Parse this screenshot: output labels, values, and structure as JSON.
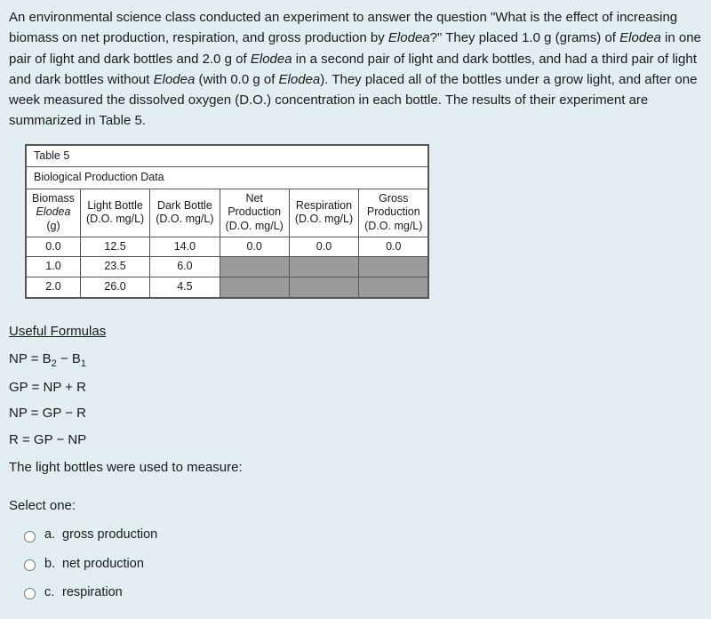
{
  "intro": {
    "html": "An environmental science class conducted an experiment to answer the question \"What is the effect of increasing biomass on net production, respiration, and gross production by <em>Elodea</em>?\" They placed 1.0 g (grams) of <em>Elodea</em> in one pair of light and dark bottles and 2.0 g of <em>Elodea</em> in a second pair of light and dark bottles, and had a third pair of light and dark bottles without <em>Elodea</em> (with 0.0 g of <em>Elodea</em>). They placed all of the bottles under a grow light, and after one week measured the dissolved oxygen (D.O.) concentration in each bottle. The results of their experiment are summarized in Table 5."
  },
  "table": {
    "title": "Table 5",
    "subtitle": "Biological Production Data",
    "columns": [
      {
        "l1": "Biomass",
        "l2_html": "<em>Elodea</em>",
        "l3": "(g)"
      },
      {
        "l1": "Light Bottle",
        "l2": "(D.O. mg/L)",
        "l3": ""
      },
      {
        "l1": "Dark Bottle",
        "l2": "(D.O. mg/L)",
        "l3": ""
      },
      {
        "l1": "Net",
        "l2": "Production",
        "l3": "(D.O. mg/L)"
      },
      {
        "l1": "Respiration",
        "l2": "(D.O. mg/L)",
        "l3": ""
      },
      {
        "l1": "Gross",
        "l2": "Production",
        "l3": "(D.O. mg/L)"
      }
    ],
    "rows": [
      {
        "cells": [
          "0.0",
          "12.5",
          "14.0",
          "0.0",
          "0.0",
          "0.0"
        ],
        "shaded": [
          false,
          false,
          false,
          false,
          false,
          false
        ]
      },
      {
        "cells": [
          "1.0",
          "23.5",
          "6.0",
          "",
          "",
          ""
        ],
        "shaded": [
          false,
          false,
          false,
          true,
          true,
          true
        ]
      },
      {
        "cells": [
          "2.0",
          "26.0",
          "4.5",
          "",
          "",
          ""
        ],
        "shaded": [
          false,
          false,
          false,
          true,
          true,
          true
        ]
      }
    ]
  },
  "formulas": {
    "title": "Useful Formulas",
    "lines_html": [
      "NP = B<sub>2</sub> − B<sub>1</sub>",
      "GP = NP + R",
      "NP = GP − R",
      "R = GP − NP"
    ],
    "stem": "The light bottles were used to measure:"
  },
  "select": {
    "label": "Select one:",
    "options": [
      {
        "letter": "a.",
        "text": "gross production"
      },
      {
        "letter": "b.",
        "text": "net production"
      },
      {
        "letter": "c.",
        "text": "respiration"
      }
    ]
  },
  "colors": {
    "page_bg": "#e2eef1",
    "table_bg": "#ffffff",
    "shaded_cell": "#9b9b9b",
    "border": "#555555"
  }
}
